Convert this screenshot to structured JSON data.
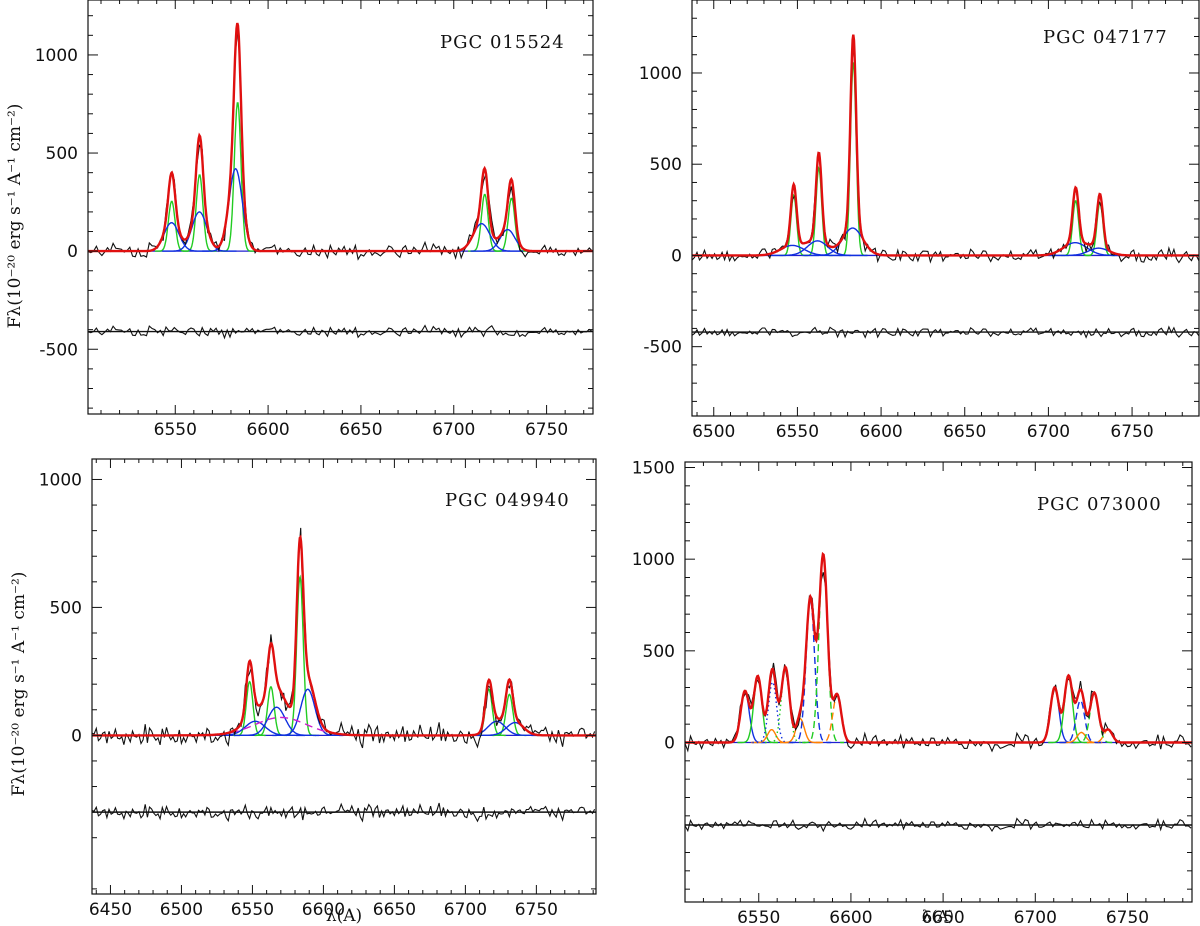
{
  "chart_data": [
    {
      "type": "line",
      "title": "PGC 015524",
      "xlabel": "",
      "ylabel": "Fλ(10⁻²⁰ erg s⁻¹ A⁻¹ cm⁻²)",
      "xlim": [
        6503,
        6775
      ],
      "ylim": [
        -830,
        1280
      ],
      "xticks": [
        6550,
        6600,
        6650,
        6700,
        6750
      ],
      "yticks": [
        -500,
        0,
        500,
        1000
      ],
      "residual_offset": -410,
      "lines": [
        {
          "comp": "green",
          "center": 6548.1,
          "amp": 255,
          "sigma": 1.8
        },
        {
          "comp": "green",
          "center": 6563.1,
          "amp": 390,
          "sigma": 1.8
        },
        {
          "comp": "green",
          "center": 6583.6,
          "amp": 760,
          "sigma": 1.8
        },
        {
          "comp": "green",
          "center": 6716.7,
          "amp": 290,
          "sigma": 1.8
        },
        {
          "comp": "green",
          "center": 6731.1,
          "amp": 270,
          "sigma": 1.8
        },
        {
          "comp": "blue",
          "center": 6548,
          "amp": 145,
          "sigma": 4
        },
        {
          "comp": "blue",
          "center": 6563,
          "amp": 200,
          "sigma": 4
        },
        {
          "comp": "blue",
          "center": 6582.5,
          "amp": 420,
          "sigma": 3.6
        },
        {
          "comp": "blue",
          "center": 6715,
          "amp": 140,
          "sigma": 4.5
        },
        {
          "comp": "blue",
          "center": 6729,
          "amp": 110,
          "sigma": 4
        }
      ]
    },
    {
      "type": "line",
      "title": "PGC 047177",
      "xlabel": "",
      "ylabel": "",
      "xlim": [
        6487,
        6790
      ],
      "ylim": [
        -880,
        1400
      ],
      "xticks": [
        6500,
        6550,
        6600,
        6650,
        6700,
        6750
      ],
      "yticks": [
        -500,
        0,
        500,
        1000
      ],
      "residual_offset": -420,
      "lines": [
        {
          "comp": "green",
          "center": 6547.8,
          "amp": 330,
          "sigma": 1.7
        },
        {
          "comp": "green",
          "center": 6562.8,
          "amp": 480,
          "sigma": 1.7
        },
        {
          "comp": "green",
          "center": 6583.4,
          "amp": 1060,
          "sigma": 1.7
        },
        {
          "comp": "green",
          "center": 6716.3,
          "amp": 300,
          "sigma": 1.8
        },
        {
          "comp": "green",
          "center": 6730.8,
          "amp": 290,
          "sigma": 1.8
        },
        {
          "comp": "blue",
          "center": 6547,
          "amp": 55,
          "sigma": 7
        },
        {
          "comp": "blue",
          "center": 6562,
          "amp": 80,
          "sigma": 6
        },
        {
          "comp": "blue",
          "center": 6583,
          "amp": 150,
          "sigma": 6
        },
        {
          "comp": "blue",
          "center": 6716,
          "amp": 70,
          "sigma": 7
        },
        {
          "comp": "blue",
          "center": 6730,
          "amp": 40,
          "sigma": 6
        }
      ]
    },
    {
      "type": "line",
      "title": "PGC 049940",
      "xlabel": "λ(A)",
      "ylabel": "Fλ(10⁻²⁰ erg s⁻¹ A⁻¹ cm⁻²)",
      "xlim": [
        6437,
        6792
      ],
      "ylim": [
        -620,
        1080
      ],
      "xticks": [
        6450,
        6500,
        6550,
        6600,
        6650,
        6700,
        6750
      ],
      "yticks": [
        0,
        500,
        1000
      ],
      "residual_offset": -300,
      "lines": [
        {
          "comp": "green",
          "center": 6548,
          "amp": 210,
          "sigma": 2.3
        },
        {
          "comp": "green",
          "center": 6563,
          "amp": 190,
          "sigma": 2.3
        },
        {
          "comp": "green",
          "center": 6583.5,
          "amp": 620,
          "sigma": 2.3
        },
        {
          "comp": "green",
          "center": 6716.5,
          "amp": 180,
          "sigma": 2.4
        },
        {
          "comp": "green",
          "center": 6731,
          "amp": 160,
          "sigma": 2.4
        },
        {
          "comp": "blue",
          "center": 6552,
          "amp": 55,
          "sigma": 7
        },
        {
          "comp": "blue",
          "center": 6567,
          "amp": 110,
          "sigma": 6
        },
        {
          "comp": "blue",
          "center": 6589,
          "amp": 180,
          "sigma": 5
        },
        {
          "comp": "blue",
          "center": 6722,
          "amp": 55,
          "sigma": 6
        },
        {
          "comp": "blue",
          "center": 6735,
          "amp": 50,
          "sigma": 6
        },
        {
          "comp": "magenta",
          "center": 6570,
          "amp": 70,
          "sigma": 18
        }
      ]
    },
    {
      "type": "line",
      "title": "PGC 073000",
      "xlabel": "λ(A)",
      "ylabel": "",
      "xlim": [
        6510,
        6785
      ],
      "ylim": [
        -870,
        1530
      ],
      "xticks": [
        6550,
        6600,
        6650,
        6700,
        6750
      ],
      "yticks": [
        0,
        500,
        1000,
        1500
      ],
      "residual_offset": -450,
      "lines": [
        {
          "comp": "blue",
          "center": 6542.5,
          "amp": 280,
          "sigma": 2.3
        },
        {
          "comp": "green",
          "center": 6549.5,
          "amp": 360,
          "sigma": 2.2
        },
        {
          "comp": "orange",
          "center": 6557,
          "amp": 70,
          "sigma": 2.2
        },
        {
          "comp": "blue-dot",
          "center": 6557.5,
          "amp": 330,
          "sigma": 2.2
        },
        {
          "comp": "green-dot",
          "center": 6564.5,
          "amp": 410,
          "sigma": 2.2
        },
        {
          "comp": "orange",
          "center": 6572.5,
          "amp": 130,
          "sigma": 2.2
        },
        {
          "comp": "blue-dash",
          "center": 6578,
          "amp": 780,
          "sigma": 2.3
        },
        {
          "comp": "green-dash",
          "center": 6585,
          "amp": 1020,
          "sigma": 2.3
        },
        {
          "comp": "orange-dash",
          "center": 6592.5,
          "amp": 260,
          "sigma": 2.3
        },
        {
          "comp": "blue",
          "center": 6710.5,
          "amp": 300,
          "sigma": 2.3
        },
        {
          "comp": "green",
          "center": 6718,
          "amp": 360,
          "sigma": 2.2
        },
        {
          "comp": "orange",
          "center": 6725,
          "amp": 55,
          "sigma": 2.3
        },
        {
          "comp": "blue-dash",
          "center": 6724.5,
          "amp": 230,
          "sigma": 2.3
        },
        {
          "comp": "green-dash",
          "center": 6732,
          "amp": 270,
          "sigma": 2.3
        },
        {
          "comp": "orange-dash",
          "center": 6739.5,
          "amp": 70,
          "sigma": 2.3
        }
      ]
    }
  ],
  "colors": {
    "total_fit": "#e01010",
    "observed": "#111111",
    "narrow": "#22cc22",
    "broad": "#1030e0",
    "wing": "#cc20cc",
    "extra": "#ff8000",
    "zero_line": "#2020d0"
  }
}
